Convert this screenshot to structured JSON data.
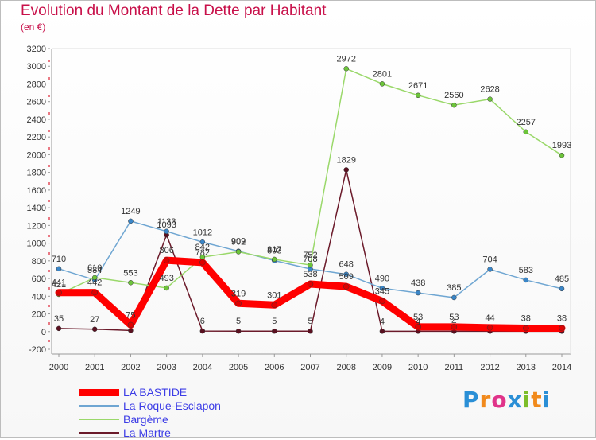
{
  "header": {
    "title": "Evolution du Montant de la Dette par Habitant",
    "unit": "(en €)"
  },
  "logo": {
    "letters": [
      "P",
      "r",
      "o",
      "x",
      "i",
      "t",
      "i"
    ],
    "colors": [
      "#2a8fd6",
      "#f18a1c",
      "#e0348a",
      "#2a8fd6",
      "#7cbd2a",
      "#f18a1c",
      "#2a8fd6"
    ]
  },
  "chart_data": {
    "type": "line",
    "title": "Evolution du Montant de la Dette par Habitant",
    "ylabel": "(en €)",
    "xlabel": "",
    "x": [
      "2000",
      "2001",
      "2002",
      "2003",
      "2004",
      "2005",
      "2006",
      "2007",
      "2008",
      "2009",
      "2010",
      "2011",
      "2012",
      "2013",
      "2014"
    ],
    "ylim": [
      -200,
      3200
    ],
    "yticks": [
      "-200",
      "0",
      "200",
      "400",
      "600",
      "800",
      "1000",
      "1200",
      "1400",
      "1600",
      "1800",
      "2000",
      "2200",
      "2400",
      "2600",
      "2800",
      "3000",
      "3200"
    ],
    "grid": false,
    "legend": "bottom-left",
    "series": [
      {
        "name": "La Martre",
        "color": "#6b1a2a",
        "marker": "#5a1020",
        "values": [
          35,
          27,
          12,
          1093,
          6,
          5,
          5,
          5,
          1829,
          4,
          4,
          4,
          4,
          4,
          4
        ],
        "labels": [
          "35",
          "27",
          "",
          "1093",
          "6",
          "5",
          "5",
          "5",
          "1829",
          "4",
          "4",
          "4",
          "",
          "",
          ""
        ]
      },
      {
        "name": "La Roque-Esclapon",
        "color": "#6fa6d2",
        "marker": "#3a86c8",
        "values": [
          710,
          584,
          1249,
          1133,
          1012,
          909,
          803,
          708,
          648,
          490,
          438,
          385,
          704,
          583,
          485
        ],
        "labels": [
          "710",
          "584",
          "1249",
          "1133",
          "1012",
          "909",
          "803",
          "708",
          "648",
          "490",
          "438",
          "385",
          "704",
          "583",
          "485"
        ]
      },
      {
        "name": "Bargème",
        "color": "#9ad86a",
        "marker": "#6cc43a",
        "values": [
          421,
          610,
          553,
          493,
          842,
          902,
          817,
          752,
          2972,
          2801,
          2671,
          2560,
          2628,
          2257,
          1993
        ],
        "labels": [
          "421",
          "610",
          "553",
          "493",
          "842",
          "902",
          "817",
          "752",
          "2972",
          "2801",
          "2671",
          "2560",
          "2628",
          "2257",
          "1993"
        ]
      },
      {
        "name": "LA BASTIDE",
        "color": "#ff0000",
        "marker": "#e00000",
        "values": [
          441,
          442,
          75,
          806,
          782,
          319,
          301,
          538,
          509,
          345,
          53,
          53,
          44,
          38,
          38
        ],
        "labels": [
          "441",
          "442",
          "75",
          "806",
          "782",
          "319",
          "301",
          "538",
          "509",
          "345",
          "53",
          "53",
          "44",
          "38",
          "38"
        ]
      }
    ]
  }
}
